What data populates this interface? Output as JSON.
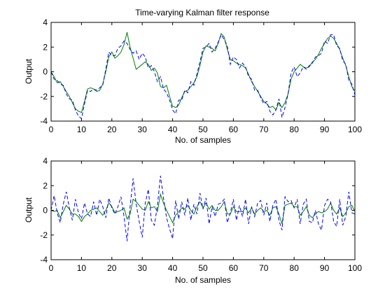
{
  "figure": {
    "background": "#ffffff"
  },
  "chart_data": [
    {
      "type": "line",
      "title": "Time-varying Kalman filter response",
      "xlabel": "No. of samples",
      "ylabel": "Output",
      "xlim": [
        0,
        100
      ],
      "ylim": [
        -4,
        4
      ],
      "xticks": [
        0,
        10,
        20,
        30,
        40,
        50,
        60,
        70,
        80,
        90,
        100
      ],
      "yticks": [
        -4,
        -2,
        0,
        2,
        4
      ],
      "grid": false,
      "series": [
        {
          "style": "solid",
          "color": "#008000",
          "x": [
            0,
            1,
            2,
            3,
            4,
            5,
            6,
            7,
            8,
            9,
            10,
            11,
            12,
            13,
            14,
            15,
            16,
            17,
            18,
            19,
            20,
            21,
            22,
            23,
            24,
            25,
            26,
            27,
            28,
            29,
            30,
            31,
            32,
            33,
            34,
            35,
            36,
            37,
            38,
            39,
            40,
            41,
            42,
            43,
            44,
            45,
            46,
            47,
            48,
            49,
            50,
            51,
            52,
            53,
            54,
            55,
            56,
            57,
            58,
            59,
            60,
            61,
            62,
            63,
            64,
            65,
            66,
            67,
            68,
            69,
            70,
            71,
            72,
            73,
            74,
            75,
            76,
            77,
            78,
            79,
            80,
            81,
            82,
            83,
            84,
            85,
            86,
            87,
            88,
            89,
            90,
            91,
            92,
            93,
            94,
            95,
            96,
            97,
            98,
            99,
            100
          ],
          "y": [
            0,
            -0.4,
            -0.9,
            -0.8,
            -1.2,
            -1.6,
            -2.0,
            -2.5,
            -3.0,
            -3.2,
            -3.3,
            -2.4,
            -1.4,
            -1.3,
            -1.4,
            -1.6,
            -1.5,
            -1.0,
            0.0,
            1.2,
            1.6,
            1.1,
            1.3,
            1.6,
            2.2,
            3.2,
            2.0,
            1.1,
            0.2,
            0.4,
            0.6,
            0.8,
            0.6,
            0.1,
            0.3,
            -0.1,
            -1.2,
            -1.3,
            -1.1,
            -2.0,
            -2.8,
            -2.9,
            -2.7,
            -2.1,
            -1.6,
            -1.5,
            -1.2,
            -0.9,
            -0.4,
            0.5,
            1.6,
            2.1,
            2.0,
            1.9,
            1.7,
            2.3,
            3.1,
            2.8,
            1.8,
            1.0,
            0.9,
            0.7,
            0.6,
            0.5,
            0.3,
            -0.2,
            -0.8,
            -1.2,
            -1.6,
            -2.0,
            -2.4,
            -2.6,
            -2.9,
            -2.8,
            -3.1,
            -2.5,
            -2.9,
            -2.5,
            -1.8,
            -0.6,
            0.0,
            0.3,
            0.6,
            0.4,
            0.3,
            0.4,
            0.8,
            1.0,
            1.4,
            1.9,
            2.3,
            2.7,
            2.9,
            2.7,
            2.3,
            1.8,
            1.1,
            0.5,
            -0.4,
            -1.2,
            -1.6
          ]
        },
        {
          "style": "dashed",
          "color": "#0000ff",
          "x": [
            0,
            1,
            2,
            3,
            4,
            5,
            6,
            7,
            8,
            9,
            10,
            11,
            12,
            13,
            14,
            15,
            16,
            17,
            18,
            19,
            20,
            21,
            22,
            23,
            24,
            25,
            26,
            27,
            28,
            29,
            30,
            31,
            32,
            33,
            34,
            35,
            36,
            37,
            38,
            39,
            40,
            41,
            42,
            43,
            44,
            45,
            46,
            47,
            48,
            49,
            50,
            51,
            52,
            53,
            54,
            55,
            56,
            57,
            58,
            59,
            60,
            61,
            62,
            63,
            64,
            65,
            66,
            67,
            68,
            69,
            70,
            71,
            72,
            73,
            74,
            75,
            76,
            77,
            78,
            79,
            80,
            81,
            82,
            83,
            84,
            85,
            86,
            87,
            88,
            89,
            90,
            91,
            92,
            93,
            94,
            95,
            96,
            97,
            98,
            99,
            100
          ],
          "y": [
            0,
            -0.6,
            -0.7,
            -1.0,
            -1.1,
            -1.8,
            -2.2,
            -2.3,
            -3.1,
            -3.6,
            -3.8,
            -2.6,
            -1.5,
            -1.6,
            -1.4,
            -1.5,
            -1.3,
            -1.1,
            0.2,
            1.6,
            1.3,
            1.3,
            1.9,
            2.1,
            2.5,
            2.3,
            1.8,
            1.5,
            1.7,
            1.0,
            1.5,
            1.2,
            0.3,
            0.5,
            0.0,
            -0.8,
            -0.4,
            -1.4,
            -1.7,
            -2.3,
            -3.1,
            -3.4,
            -2.3,
            -2.3,
            -1.5,
            -1.7,
            -0.8,
            -1.1,
            -0.2,
            0.8,
            1.9,
            2.0,
            2.3,
            1.6,
            1.9,
            2.4,
            3.0,
            2.6,
            2.1,
            0.6,
            1.2,
            1.0,
            0.3,
            0.7,
            0.4,
            -0.4,
            -0.6,
            -1.5,
            -1.5,
            -2.1,
            -2.6,
            -2.4,
            -3.2,
            -3.5,
            -3.1,
            -2.2,
            -3.7,
            -2.9,
            -1.8,
            -0.1,
            0.4,
            -0.4,
            -0.1,
            0.4,
            0.2,
            0.5,
            0.7,
            1.2,
            1.3,
            1.5,
            2.5,
            2.3,
            3.0,
            3.0,
            2.1,
            1.9,
            0.9,
            0.6,
            -0.7,
            -1.0,
            -1.9
          ]
        }
      ]
    },
    {
      "type": "line",
      "title": "",
      "xlabel": "No. of samples",
      "ylabel": "Output",
      "xlim": [
        0,
        100
      ],
      "ylim": [
        -4,
        4
      ],
      "xticks": [
        0,
        10,
        20,
        30,
        40,
        50,
        60,
        70,
        80,
        90,
        100
      ],
      "yticks": [
        -4,
        -2,
        0,
        2,
        4
      ],
      "grid": false,
      "series": [
        {
          "style": "solid",
          "color": "#008000",
          "x": [
            0,
            1,
            2,
            3,
            4,
            5,
            6,
            7,
            8,
            9,
            10,
            11,
            12,
            13,
            14,
            15,
            16,
            17,
            18,
            19,
            20,
            21,
            22,
            23,
            24,
            25,
            26,
            27,
            28,
            29,
            30,
            31,
            32,
            33,
            34,
            35,
            36,
            37,
            38,
            39,
            40,
            41,
            42,
            43,
            44,
            45,
            46,
            47,
            48,
            49,
            50,
            51,
            52,
            53,
            54,
            55,
            56,
            57,
            58,
            59,
            60,
            61,
            62,
            63,
            64,
            65,
            66,
            67,
            68,
            69,
            70,
            71,
            72,
            73,
            74,
            75,
            76,
            77,
            78,
            79,
            80,
            81,
            82,
            83,
            84,
            85,
            86,
            87,
            88,
            89,
            90,
            91,
            92,
            93,
            94,
            95,
            96,
            97,
            98,
            99,
            100
          ],
          "y": [
            0,
            -0.1,
            0.0,
            -0.6,
            -0.1,
            0.4,
            0.1,
            -0.3,
            -0.3,
            -0.5,
            -0.9,
            -0.5,
            -0.3,
            0.0,
            0.1,
            0.2,
            -0.1,
            -0.4,
            0.0,
            0.6,
            0.3,
            -0.2,
            -0.1,
            0.0,
            0.2,
            -0.7,
            -0.3,
            0.9,
            0.7,
            0.4,
            0.1,
            0.0,
            0.7,
            0.2,
            0.3,
            -0.1,
            1.3,
            0.6,
            0.0,
            -0.5,
            -1.0,
            -0.4,
            -0.1,
            0.2,
            0.1,
            0.4,
            0.0,
            -0.3,
            0.3,
            0.7,
            0.2,
            0.6,
            0.1,
            0.4,
            0.0,
            0.0,
            0.3,
            0.7,
            -0.3,
            -0.3,
            0.3,
            -0.1,
            -0.1,
            -0.1,
            0.2,
            -0.2,
            0.2,
            -0.3,
            0.0,
            0.2,
            -0.1,
            0.0,
            -0.4,
            0.2,
            0.3,
            -0.3,
            -1.1,
            0.4,
            0.5,
            0.6,
            0.3,
            0.3,
            -0.4,
            -0.1,
            0.3,
            -0.4,
            -0.6,
            -0.3,
            -0.1,
            -0.2,
            -0.1,
            0.1,
            0.6,
            0.0,
            -0.3,
            0.2,
            -0.5,
            -0.2,
            0.3,
            0.4,
            -0.1
          ]
        },
        {
          "style": "dashed",
          "color": "#0000ff",
          "x": [
            0,
            1,
            2,
            3,
            4,
            5,
            6,
            7,
            8,
            9,
            10,
            11,
            12,
            13,
            14,
            15,
            16,
            17,
            18,
            19,
            20,
            21,
            22,
            23,
            24,
            25,
            26,
            27,
            28,
            29,
            30,
            31,
            32,
            33,
            34,
            35,
            36,
            37,
            38,
            39,
            40,
            41,
            42,
            43,
            44,
            45,
            46,
            47,
            48,
            49,
            50,
            51,
            52,
            53,
            54,
            55,
            56,
            57,
            58,
            59,
            60,
            61,
            62,
            63,
            64,
            65,
            66,
            67,
            68,
            69,
            70,
            71,
            72,
            73,
            74,
            75,
            76,
            77,
            78,
            79,
            80,
            81,
            82,
            83,
            84,
            85,
            86,
            87,
            88,
            89,
            90,
            91,
            92,
            93,
            94,
            95,
            96,
            97,
            98,
            99,
            100
          ],
          "y": [
            0,
            1.2,
            -0.2,
            -1.0,
            0.5,
            1.5,
            0.2,
            -0.8,
            0.9,
            -0.2,
            -0.7,
            0.6,
            -0.3,
            -0.5,
            0.7,
            -0.4,
            0.9,
            0.3,
            -0.6,
            1.0,
            0.2,
            -0.3,
            0.3,
            1.1,
            -0.5,
            -2.5,
            0.3,
            2.6,
            0.5,
            -0.9,
            -2.2,
            0.6,
            1.7,
            -0.8,
            -1.2,
            0.4,
            2.8,
            1.0,
            -0.6,
            -1.5,
            -2.3,
            0.8,
            -0.7,
            0.7,
            -0.4,
            1.0,
            -0.8,
            0.5,
            -0.3,
            1.4,
            0.1,
            1.0,
            -1.1,
            0.3,
            -0.5,
            0.5,
            0.6,
            0.9,
            -1.0,
            -0.2,
            0.9,
            -0.8,
            0.4,
            -0.5,
            0.9,
            -1.1,
            0.3,
            -0.5,
            0.6,
            0.8,
            -0.4,
            0.6,
            -0.9,
            0.4,
            0.9,
            -0.8,
            -1.6,
            1.1,
            0.7,
            0.8,
            0.2,
            0.9,
            -1.1,
            0.5,
            0.9,
            -0.9,
            -1.0,
            0.0,
            -1.1,
            -1.6,
            0.4,
            0.9,
            0.7,
            -0.9,
            -1.3,
            0.9,
            -1.2,
            -0.5,
            1.5,
            -0.2,
            -0.3
          ]
        }
      ]
    }
  ]
}
